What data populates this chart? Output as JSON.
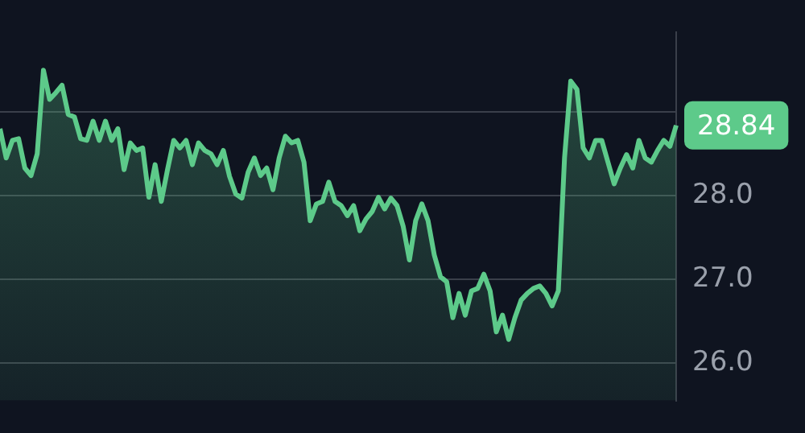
{
  "chart_data": {
    "type": "area",
    "color": "#5dca8a",
    "categories": [
      null,
      null,
      null,
      null,
      null,
      null,
      null,
      null,
      null,
      null,
      null,
      null,
      null,
      null,
      null,
      null,
      null,
      null,
      null,
      null,
      null,
      null,
      null,
      null,
      null,
      null,
      null,
      null,
      null,
      null,
      null,
      null,
      null,
      null,
      null,
      null,
      null,
      null,
      null,
      null,
      null,
      null,
      null,
      null,
      null,
      null,
      null,
      null,
      null,
      null,
      null,
      null,
      null,
      null,
      null,
      null,
      null,
      null,
      null,
      null,
      null,
      null,
      null,
      null,
      null,
      null,
      null,
      null,
      null,
      null,
      null,
      null,
      null,
      null,
      null,
      null,
      null,
      null,
      null,
      null,
      null,
      null,
      null,
      null,
      null,
      null,
      null,
      null,
      null,
      null,
      null,
      null,
      null,
      null,
      null,
      null,
      null,
      null,
      null,
      null,
      null,
      null,
      null,
      null,
      null,
      null,
      null,
      null,
      null,
      null
    ],
    "values": [
      28.8,
      28.45,
      28.66,
      28.68,
      28.33,
      28.24,
      28.5,
      29.5,
      29.15,
      29.23,
      29.32,
      28.97,
      28.94,
      28.68,
      28.66,
      28.89,
      28.66,
      28.89,
      28.66,
      28.8,
      28.31,
      28.63,
      28.54,
      28.57,
      27.98,
      28.37,
      27.93,
      28.31,
      28.66,
      28.57,
      28.66,
      28.37,
      28.63,
      28.54,
      28.5,
      28.37,
      28.54,
      28.23,
      28.02,
      27.97,
      28.28,
      28.45,
      28.24,
      28.33,
      28.07,
      28.45,
      28.71,
      28.63,
      28.66,
      28.4,
      27.7,
      27.9,
      27.93,
      28.16,
      27.93,
      27.88,
      27.76,
      27.88,
      27.58,
      27.72,
      27.81,
      27.98,
      27.84,
      27.97,
      27.88,
      27.63,
      27.23,
      27.7,
      27.9,
      27.7,
      27.29,
      27.03,
      26.97,
      26.54,
      26.83,
      26.57,
      26.86,
      26.89,
      27.06,
      26.86,
      26.37,
      26.57,
      26.28,
      26.54,
      26.75,
      26.83,
      26.89,
      26.92,
      26.83,
      26.68,
      26.86,
      28.45,
      29.37,
      29.27,
      28.57,
      28.45,
      28.66,
      28.66,
      28.4,
      28.14,
      28.33,
      28.49,
      28.33,
      28.66,
      28.45,
      28.4,
      28.54,
      28.66,
      28.59,
      28.84
    ],
    "ylim": [
      25.55,
      29.95
    ],
    "yticks": [
      {
        "value": 26,
        "label": "26.0"
      },
      {
        "value": 27,
        "label": "27.0"
      },
      {
        "value": 28,
        "label": "28.0"
      },
      {
        "value": 29,
        "label": null
      }
    ],
    "grid": "y",
    "tick_labels": "y",
    "annotations": [
      "28.84"
    ]
  }
}
